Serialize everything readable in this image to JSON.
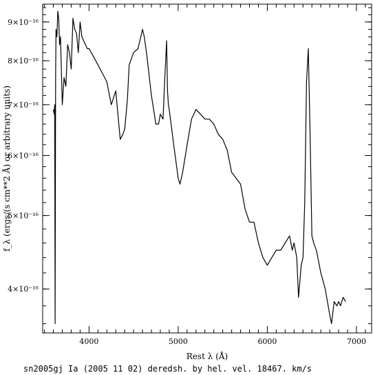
{
  "chart_data": {
    "type": "line",
    "title": "",
    "xlabel": "Rest λ (Å)",
    "ylabel": "f_λ (ergs/(s cm**2 Å) or arbitrary units)",
    "caption": "sn2005gj Ia (2005 11 02) deredsh. by hel. vel. 18467. km/s",
    "xlim": [
      3480,
      7170
    ],
    "ylim": [
      3.5e-16,
      9.5e-16
    ],
    "yscale": "log",
    "grid": false,
    "legend": "none",
    "x_ticks": [
      {
        "value": 4000,
        "label": "4000"
      },
      {
        "value": 5000,
        "label": "5000"
      },
      {
        "value": 6000,
        "label": "6000"
      },
      {
        "value": 7000,
        "label": "7000"
      }
    ],
    "y_ticks": [
      {
        "value": 4e-16,
        "label": "4×10⁻¹⁶"
      },
      {
        "value": 5e-16,
        "label": "5×10⁻¹⁶"
      },
      {
        "value": 6e-16,
        "label": "6×10⁻¹⁶"
      },
      {
        "value": 7e-16,
        "label": "7×10⁻¹⁶"
      },
      {
        "value": 8e-16,
        "label": "8×10⁻¹⁶"
      },
      {
        "value": 9e-16,
        "label": "9×10⁻¹⁶"
      }
    ],
    "series": [
      {
        "name": "",
        "color": "#000000",
        "x": [
          3600,
          3610,
          3615,
          3620,
          3625,
          3630,
          3640,
          3650,
          3660,
          3670,
          3680,
          3700,
          3720,
          3740,
          3760,
          3780,
          3800,
          3820,
          3840,
          3860,
          3880,
          3900,
          3920,
          3940,
          3960,
          3980,
          4000,
          4050,
          4100,
          4150,
          4200,
          4250,
          4300,
          4350,
          4380,
          4400,
          4430,
          4450,
          4500,
          4550,
          4600,
          4620,
          4650,
          4700,
          4750,
          4780,
          4800,
          4830,
          4850,
          4870,
          4880,
          4890,
          4900,
          4950,
          5000,
          5020,
          5050,
          5100,
          5150,
          5200,
          5250,
          5300,
          5350,
          5400,
          5450,
          5500,
          5550,
          5600,
          5650,
          5700,
          5750,
          5800,
          5850,
          5900,
          5950,
          6000,
          6050,
          6100,
          6150,
          6200,
          6250,
          6280,
          6300,
          6330,
          6350,
          6380,
          6400,
          6420,
          6440,
          6460,
          6480,
          6500,
          6520,
          6550,
          6600,
          6650,
          6700,
          6720,
          6750,
          6780,
          6800,
          6820,
          6850,
          6880
        ],
        "y": [
          6.9e-16,
          6.8e-16,
          7e-16,
          3.6e-16,
          7.6e-16,
          8.8e-16,
          8.6e-16,
          9.3e-16,
          9.1e-16,
          8.4e-16,
          8.6e-16,
          7e-16,
          7.6e-16,
          7.4e-16,
          8.4e-16,
          8.2e-16,
          7.8e-16,
          9.1e-16,
          8.8e-16,
          8.7e-16,
          8.2e-16,
          9e-16,
          8.6e-16,
          8.5e-16,
          8.4e-16,
          8.3e-16,
          8.3e-16,
          8.1e-16,
          7.9e-16,
          7.7e-16,
          7.5e-16,
          7e-16,
          7.3e-16,
          6.3e-16,
          6.4e-16,
          6.5e-16,
          7.1e-16,
          7.9e-16,
          8.2e-16,
          8.3e-16,
          8.8e-16,
          8.6e-16,
          8.1e-16,
          7.2e-16,
          6.6e-16,
          6.6e-16,
          6.8e-16,
          6.7e-16,
          7.6e-16,
          8.5e-16,
          7.3e-16,
          7e-16,
          6.9e-16,
          6.2e-16,
          5.6e-16,
          5.5e-16,
          5.7e-16,
          6.2e-16,
          6.7e-16,
          6.9e-16,
          6.8e-16,
          6.7e-16,
          6.7e-16,
          6.6e-16,
          6.4e-16,
          6.3e-16,
          6.1e-16,
          5.7e-16,
          5.6e-16,
          5.5e-16,
          5.1e-16,
          4.9e-16,
          4.9e-16,
          4.6e-16,
          4.4e-16,
          4.3e-16,
          4.4e-16,
          4.5e-16,
          4.5e-16,
          4.6e-16,
          4.7e-16,
          4.5e-16,
          4.6e-16,
          4.4e-16,
          3.9e-16,
          4.3e-16,
          4.4e-16,
          5.2e-16,
          7.5e-16,
          8.3e-16,
          6.4e-16,
          4.7e-16,
          4.6e-16,
          4.5e-16,
          4.2e-16,
          4e-16,
          3.7e-16,
          3.6e-16,
          3.85e-16,
          3.8e-16,
          3.85e-16,
          3.8e-16,
          3.9e-16,
          3.85e-16
        ]
      }
    ]
  }
}
